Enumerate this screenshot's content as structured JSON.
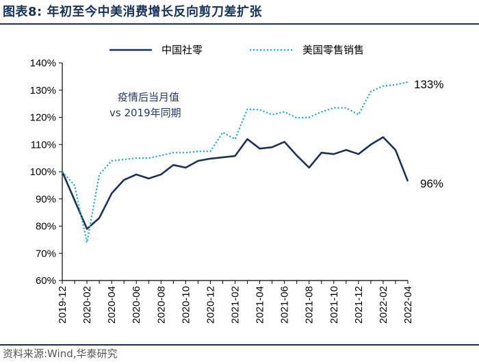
{
  "header": {
    "title": "图表8:  年初至今中美消费增长反向剪刀差扩张"
  },
  "footer": {
    "source": "资料来源:Wind,华泰研究"
  },
  "colors": {
    "china": "#16325c",
    "us": "#1ea8d8",
    "axis": "#000000"
  },
  "chart_data": {
    "type": "line",
    "title": "年初至今中美消费增长反向剪刀差扩张",
    "annotation": [
      "疫情后当月值",
      "vs  2019年同期"
    ],
    "yunit": "%",
    "ylim": [
      60,
      140
    ],
    "yticks": [
      60,
      70,
      80,
      90,
      100,
      110,
      120,
      130,
      140
    ],
    "ytick_labels": [
      "60%",
      "70%",
      "80%",
      "90%",
      "100%",
      "110%",
      "120%",
      "130%",
      "140%"
    ],
    "x": [
      "2019-12",
      "2020-01",
      "2020-02",
      "2020-03",
      "2020-04",
      "2020-05",
      "2020-06",
      "2020-07",
      "2020-08",
      "2020-09",
      "2020-10",
      "2020-11",
      "2020-12",
      "2021-01",
      "2021-02",
      "2021-03",
      "2021-04",
      "2021-05",
      "2021-06",
      "2021-07",
      "2021-08",
      "2021-09",
      "2021-10",
      "2021-11",
      "2021-12",
      "2022-01",
      "2022-02",
      "2022-03",
      "2022-04"
    ],
    "xtick_labels": [
      "2019-12",
      "2020-02",
      "2020-04",
      "2020-06",
      "2020-08",
      "2020-10",
      "2020-12",
      "2021-02",
      "2021-04",
      "2021-06",
      "2021-08",
      "2021-10",
      "2021-12",
      "2022-02",
      "2022-04"
    ],
    "series": [
      {
        "name": "中国社零",
        "style": "solid",
        "values": [
          100,
          89.5,
          79,
          83,
          92,
          97,
          99,
          97.5,
          99,
          102.5,
          101.5,
          104,
          104.8,
          105.3,
          105.8,
          112,
          108.5,
          109,
          111,
          106,
          101.5,
          107,
          106.5,
          108,
          106.5,
          110,
          112.7,
          108,
          96.5
        ],
        "end_label": "96%"
      },
      {
        "name": "美国零售销售",
        "style": "dotted",
        "values": [
          100,
          95,
          74,
          99,
          104,
          104.5,
          105,
          105,
          106,
          107,
          107,
          107.5,
          107.5,
          114.5,
          112,
          123,
          122.8,
          121,
          122,
          119.8,
          120,
          122,
          123.5,
          123.5,
          121,
          129.5,
          131.5,
          132,
          133
        ],
        "end_label": "133%"
      }
    ]
  }
}
